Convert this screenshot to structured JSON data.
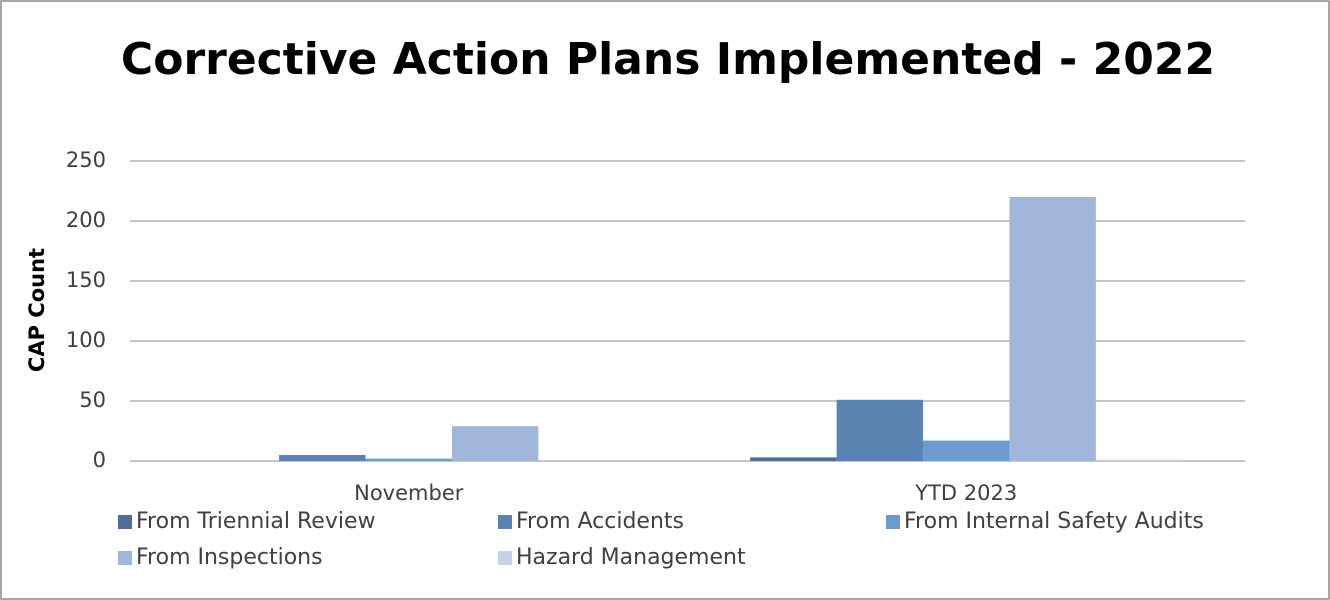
{
  "chart_data": {
    "type": "bar",
    "title": "Corrective Action Plans Implemented - 2022",
    "y_label": "CAP Count",
    "categories": [
      "November",
      "YTD 2023"
    ],
    "series": [
      {
        "name": "From Triennial Review",
        "color": "#4f6e96",
        "values": [
          0,
          3
        ]
      },
      {
        "name": "From Accidents",
        "color": "#5b83b1",
        "values": [
          5,
          51
        ]
      },
      {
        "name": "From Internal Safety Audits",
        "color": "#6e9bcf",
        "values": [
          2,
          17
        ]
      },
      {
        "name": "From Inspections",
        "color": "#a0b7d9",
        "values": [
          29,
          220
        ]
      },
      {
        "name": "Hazard Management",
        "color": "#c5d3e8",
        "values": [
          0,
          1
        ]
      }
    ],
    "ylim": [
      0,
      250
    ],
    "yticks": [
      0,
      50,
      100,
      150,
      200,
      250
    ],
    "grid": true,
    "legend": "bottom"
  }
}
